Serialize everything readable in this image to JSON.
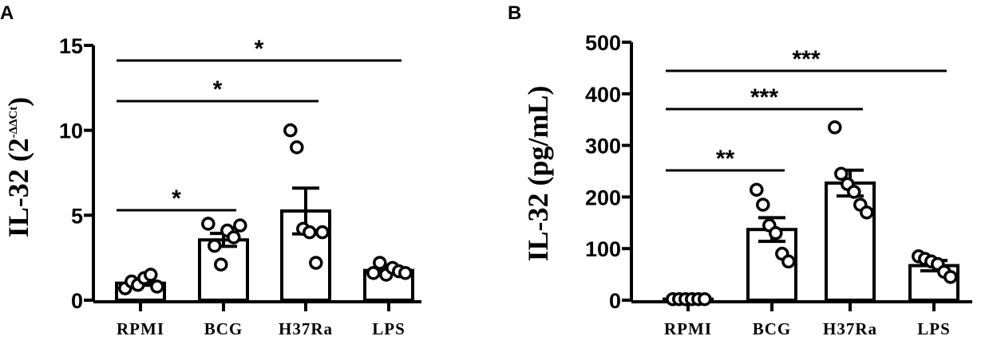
{
  "chart_data": [
    {
      "panel": "A",
      "type": "bar",
      "ylabel_main": "IL-32  (2",
      "ylabel_sup": "-ΔΔCt",
      "ylabel_close": ")",
      "ylim": [
        0,
        15
      ],
      "yticks": [
        "0",
        "5",
        "10",
        "15"
      ],
      "categories": [
        "RPMI",
        "BCG",
        "H37Ra",
        "LPS"
      ],
      "values": [
        1.0,
        3.55,
        5.25,
        1.75
      ],
      "errors": [
        0.12,
        0.38,
        1.35,
        0.15
      ],
      "points": [
        [
          0.7,
          1.1,
          0.9,
          1.3,
          1.5,
          0.8
        ],
        [
          4.5,
          3.2,
          2.1,
          4.1,
          3.7,
          4.4
        ],
        [
          10.0,
          9.0,
          4.2,
          4.0,
          2.2,
          4.0
        ],
        [
          1.6,
          2.2,
          1.5,
          1.9,
          1.7,
          1.6
        ]
      ],
      "comparisons": [
        {
          "from": 0,
          "to": 1,
          "label": "*"
        },
        {
          "from": 0,
          "to": 2,
          "label": "*"
        },
        {
          "from": 0,
          "to": 3,
          "label": "*"
        }
      ]
    },
    {
      "panel": "B",
      "type": "bar",
      "ylabel_main": "IL-32 (pg/mL)",
      "ylim": [
        0,
        500
      ],
      "yticks": [
        "0",
        "100",
        "200",
        "300",
        "400",
        "500"
      ],
      "categories": [
        "RPMI",
        "BCG",
        "H37Ra",
        "LPS"
      ],
      "values": [
        2,
        137,
        227,
        67
      ],
      "errors": [
        1,
        23,
        25,
        10
      ],
      "points": [
        [
          2,
          2,
          2,
          2,
          2,
          2
        ],
        [
          214,
          185,
          145,
          130,
          90,
          75
        ],
        [
          335,
          245,
          225,
          210,
          185,
          170
        ],
        [
          85,
          80,
          75,
          70,
          55,
          45
        ]
      ],
      "comparisons": [
        {
          "from": 0,
          "to": 1,
          "label": "**"
        },
        {
          "from": 0,
          "to": 2,
          "label": "***"
        },
        {
          "from": 0,
          "to": 3,
          "label": "***"
        }
      ]
    }
  ]
}
